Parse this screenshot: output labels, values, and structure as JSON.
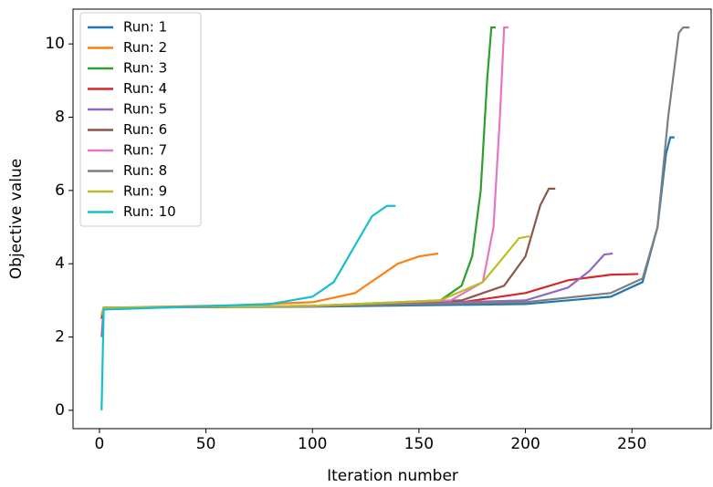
{
  "chart_data": {
    "type": "line",
    "x_label": "Iteration number",
    "y_label": "Objective value",
    "xlim": [
      -12.4,
      287.2
    ],
    "ylim": [
      -0.5,
      10.95
    ],
    "xticks": [
      0,
      50,
      100,
      150,
      200,
      250
    ],
    "yticks": [
      0,
      2,
      4,
      6,
      8,
      10
    ],
    "legend": "upper left",
    "series": [
      {
        "name": "Run: 1",
        "color": "#1f77b4",
        "x": [
          1,
          2,
          100,
          200,
          240,
          255,
          262,
          266,
          268,
          270
        ],
        "values": [
          2.5,
          2.8,
          2.83,
          2.9,
          3.1,
          3.5,
          5,
          7,
          7.45,
          7.45
        ]
      },
      {
        "name": "Run: 2",
        "color": "#ff7f0e",
        "x": [
          1,
          2,
          60,
          100,
          120,
          130,
          140,
          150,
          159
        ],
        "values": [
          2.6,
          2.8,
          2.86,
          2.95,
          3.2,
          3.6,
          4.0,
          4.2,
          4.28
        ]
      },
      {
        "name": "Run: 3",
        "color": "#2ca02c",
        "x": [
          1,
          2,
          100,
          160,
          170,
          175,
          179,
          182,
          184,
          186
        ],
        "values": [
          2.6,
          2.8,
          2.85,
          3.0,
          3.4,
          4.2,
          6,
          9,
          10.45,
          10.45
        ]
      },
      {
        "name": "Run: 4",
        "color": "#d62728",
        "x": [
          1,
          2,
          100,
          170,
          200,
          220,
          240,
          253
        ],
        "values": [
          2.5,
          2.8,
          2.84,
          2.95,
          3.2,
          3.55,
          3.7,
          3.72
        ]
      },
      {
        "name": "Run: 5",
        "color": "#9467bd",
        "x": [
          1,
          2,
          100,
          200,
          220,
          230,
          237,
          241
        ],
        "values": [
          2.0,
          2.8,
          2.84,
          3.0,
          3.35,
          3.8,
          4.25,
          4.28
        ]
      },
      {
        "name": "Run: 6",
        "color": "#8c564b",
        "x": [
          1,
          2,
          100,
          170,
          190,
          200,
          207,
          211,
          214
        ],
        "values": [
          2.6,
          2.8,
          2.85,
          3.0,
          3.4,
          4.2,
          5.6,
          6.05,
          6.05
        ]
      },
      {
        "name": "Run: 7",
        "color": "#e377c2",
        "x": [
          1,
          2,
          100,
          165,
          180,
          185,
          188,
          190,
          192
        ],
        "values": [
          2.6,
          2.8,
          2.85,
          3.0,
          3.5,
          5,
          8,
          10.45,
          10.45
        ]
      },
      {
        "name": "Run: 8",
        "color": "#7f7f7f",
        "x": [
          1,
          2,
          100,
          200,
          240,
          255,
          262,
          267,
          272,
          274,
          277
        ],
        "values": [
          2.6,
          2.8,
          2.84,
          2.95,
          3.2,
          3.6,
          5,
          8,
          10.3,
          10.45,
          10.45
        ]
      },
      {
        "name": "Run: 9",
        "color": "#bcbd22",
        "x": [
          1,
          2,
          100,
          160,
          180,
          190,
          197,
          202
        ],
        "values": [
          2.6,
          2.8,
          2.85,
          3.0,
          3.5,
          4.2,
          4.7,
          4.75
        ]
      },
      {
        "name": "Run: 10",
        "color": "#17becf",
        "x": [
          1,
          2,
          80,
          100,
          110,
          120,
          128,
          135,
          139
        ],
        "values": [
          0,
          2.75,
          2.9,
          3.1,
          3.5,
          4.5,
          5.3,
          5.58,
          5.58
        ]
      }
    ]
  }
}
